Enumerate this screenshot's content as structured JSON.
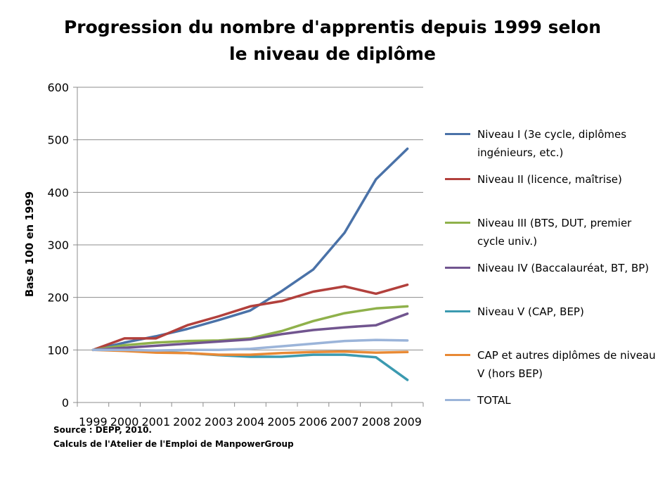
{
  "chart_data": {
    "type": "line",
    "title_lines": [
      "Progression du nombre d'apprentis depuis 1999 selon",
      "le niveau de diplôme"
    ],
    "xlabel": "",
    "ylabel": "Base 100 en 1999",
    "categories": [
      "1999",
      "2000",
      "2001",
      "2002",
      "2003",
      "2004",
      "2005",
      "2006",
      "2007",
      "2008",
      "2009"
    ],
    "ylim": [
      0,
      600
    ],
    "yticks": [
      0,
      100,
      200,
      300,
      400,
      500,
      600
    ],
    "grid": "horizontal",
    "legend_position": "right",
    "series": [
      {
        "name": "Niveau I (3e cycle, diplômes ingénieurs, etc.)",
        "color": "#4a72a8",
        "values": [
          100,
          114,
          126,
          140,
          157,
          175,
          212,
          253,
          323,
          425,
          483
        ]
      },
      {
        "name": "Niveau II (licence, maîtrise)",
        "color": "#b2403c",
        "values": [
          100,
          122,
          122,
          147,
          164,
          183,
          193,
          211,
          221,
          207,
          224
        ]
      },
      {
        "name": "Niveau III (BTS, DUT, premier cycle univ.)",
        "color": "#8fb14b",
        "values": [
          100,
          109,
          114,
          117,
          118,
          122,
          136,
          155,
          170,
          179,
          183
        ]
      },
      {
        "name": "Niveau IV (Baccalauréat, BT, BP)",
        "color": "#71558f",
        "values": [
          100,
          104,
          108,
          112,
          116,
          120,
          130,
          138,
          143,
          147,
          169
        ]
      },
      {
        "name": "Niveau V (CAP, BEP)",
        "color": "#3b9ab0",
        "values": [
          100,
          100,
          96,
          94,
          90,
          87,
          87,
          91,
          91,
          86,
          43
        ]
      },
      {
        "name": "CAP et autres diplômes de niveau V (hors BEP)",
        "color": "#e88934",
        "values": [
          100,
          98,
          95,
          94,
          91,
          91,
          94,
          96,
          97,
          95,
          96
        ]
      },
      {
        "name": "TOTAL",
        "color": "#9bb4d9",
        "values": [
          100,
          100,
          99,
          100,
          100,
          102,
          107,
          112,
          117,
          119,
          118
        ]
      }
    ],
    "source_lines": [
      "Source : DEPP, 2010.",
      "Calculs de l'Atelier de l'Emploi de ManpowerGroup"
    ]
  }
}
